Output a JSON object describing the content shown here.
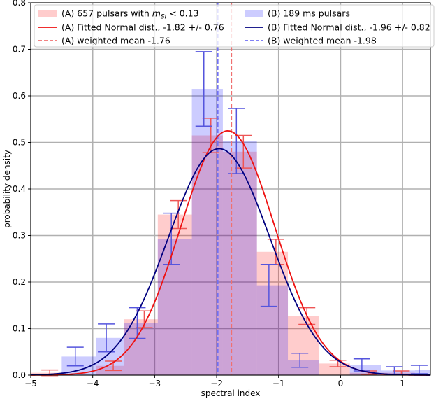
{
  "chart_data": {
    "type": "bar",
    "xlabel": "spectral index",
    "ylabel": "probability density",
    "xlim": [
      -5.0,
      1.45
    ],
    "ylim": [
      0.0,
      0.8
    ],
    "xticks": [
      -5,
      -4,
      -3,
      -2,
      -1,
      0,
      1
    ],
    "xtick_labels": [
      "−5",
      "−4",
      "−3",
      "−2",
      "−1",
      "0",
      "1"
    ],
    "yticks": [
      0.0,
      0.1,
      0.2,
      0.3,
      0.4,
      0.5,
      0.6,
      0.7,
      0.8
    ],
    "ytick_labels": [
      "0.0",
      "0.1",
      "0.2",
      "0.3",
      "0.4",
      "0.5",
      "0.6",
      "0.7",
      "0.8"
    ],
    "grid": true,
    "legend_placement": "top",
    "bin_edges": [
      -5.0,
      -4.5,
      -3.95,
      -3.5,
      -2.95,
      -2.4,
      -1.9,
      -1.35,
      -0.85,
      -0.35,
      0.15,
      0.65,
      1.2,
      1.45
    ],
    "histograms": [
      {
        "name": "(A) 657 pulsars with",
        "name_math": "m",
        "name_math_sub": "SI",
        "name_suffix": " < 0.13",
        "color": "#ff0000",
        "fill_opacity": 0.2,
        "values": [
          0.005,
          0.0,
          0.02,
          0.12,
          0.345,
          0.515,
          0.48,
          0.265,
          0.127,
          0.025,
          0.005,
          0.005,
          0.0
        ],
        "errors": [
          0.006,
          0.0,
          0.01,
          0.018,
          0.03,
          0.037,
          0.035,
          0.027,
          0.018,
          0.007,
          0.004,
          0.004,
          0.0
        ]
      },
      {
        "name": "(B) 189 ms pulsars",
        "color": "#0000ff",
        "fill_opacity": 0.2,
        "values": [
          0.0,
          0.04,
          0.08,
          0.112,
          0.293,
          0.615,
          0.503,
          0.193,
          0.032,
          0.0,
          0.022,
          0.01,
          0.012
        ],
        "errors": [
          0.0,
          0.02,
          0.03,
          0.033,
          0.055,
          0.08,
          0.07,
          0.045,
          0.015,
          0.0,
          0.013,
          0.008,
          0.009
        ]
      }
    ],
    "curves": [
      {
        "name": "(A) Fitted Normal dist., -1.82 +/- 0.76",
        "mean": -1.82,
        "sd": 0.76,
        "color": "#ee1111"
      },
      {
        "name": "(B) Fitted Normal dist., -1.96 +/- 0.82",
        "mean": -1.96,
        "sd": 0.82,
        "color": "#00007f"
      }
    ],
    "vlines": [
      {
        "name": "(A) weighted mean -1.76",
        "x": -1.76,
        "color": "#f07070"
      },
      {
        "name": "(B) weighted mean -1.98",
        "x": -1.98,
        "color": "#6f6ff5"
      }
    ]
  }
}
